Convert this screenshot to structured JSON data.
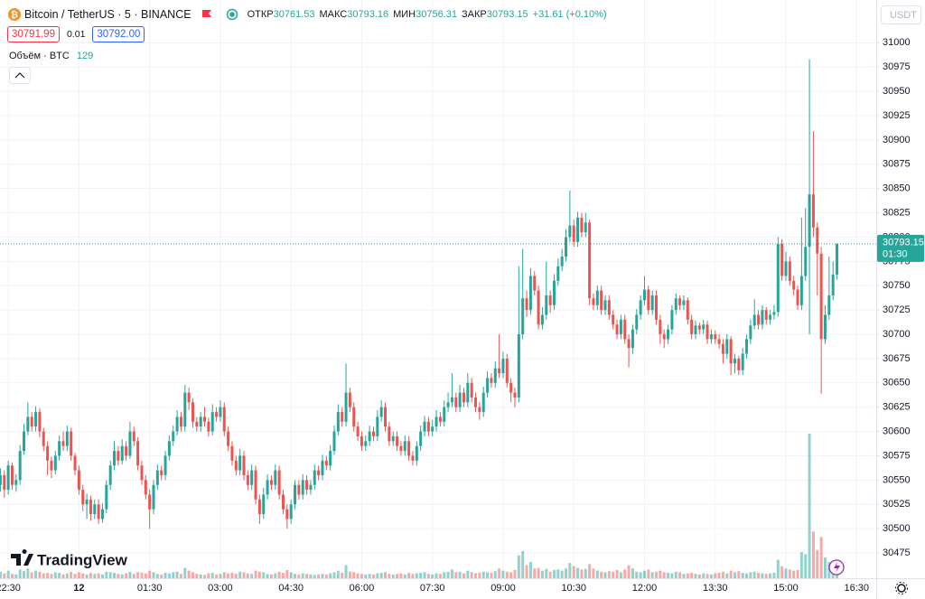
{
  "chart_data": {
    "type": "candlestick",
    "symbol": "Bitcoin / TetherUS · 5 · BINANCE",
    "open_label": "ОТКР",
    "high_label": "МАКС",
    "low_label": "МИН",
    "close_label": "ЗАКР",
    "change": "+31.61 (+0.10%)",
    "bid": "30791.99",
    "spread": "0.01",
    "ask": "30792.00",
    "volume_label": "Объём · BTC",
    "currency": "USDT",
    "countdown": "01:30",
    "logo": "TradingView",
    "up_color": "#26a69a",
    "down_color": "#ef5350",
    "grid": true,
    "ylim": [
      30449,
      31044
    ],
    "yticks": [
      30475,
      30500,
      30525,
      30550,
      30575,
      30600,
      30625,
      30650,
      30675,
      30700,
      30725,
      30750,
      30775,
      30800,
      30825,
      30850,
      30875,
      30900,
      30925,
      30950,
      30975,
      31000
    ],
    "xlim": [
      -0.1,
      223
    ],
    "xticks": [
      {
        "value": 2,
        "label": "22:30"
      },
      {
        "value": 20,
        "label": "12"
      },
      {
        "value": 38,
        "label": "01:30"
      },
      {
        "value": 56,
        "label": "03:00"
      },
      {
        "value": 74,
        "label": "04:30"
      },
      {
        "value": 92,
        "label": "06:00"
      },
      {
        "value": 110,
        "label": "07:30"
      },
      {
        "value": 128,
        "label": "09:00"
      },
      {
        "value": 146,
        "label": "10:30"
      },
      {
        "value": 164,
        "label": "12:00"
      },
      {
        "value": 182,
        "label": "13:30"
      },
      {
        "value": 200,
        "label": "15:00"
      },
      {
        "value": 218,
        "label": "16:30"
      }
    ],
    "open": [
      30545,
      30555,
      30540,
      30565,
      30545,
      30550,
      30580,
      30600,
      30615,
      30605,
      30620,
      30600,
      30585,
      30570,
      30560,
      30575,
      30590,
      30585,
      30600,
      30575,
      30560,
      30540,
      30525,
      30530,
      30515,
      30525,
      30510,
      30520,
      30545,
      30565,
      30580,
      30570,
      30585,
      30575,
      30600,
      30590,
      30565,
      30550,
      30535,
      30520,
      30545,
      30560,
      30555,
      30575,
      30590,
      30600,
      30615,
      30605,
      30640,
      30630,
      30610,
      30605,
      30615,
      30610,
      30600,
      30620,
      30615,
      30625,
      30600,
      30585,
      30570,
      30560,
      30575,
      30555,
      30545,
      30560,
      30530,
      30515,
      30535,
      30550,
      30545,
      30560,
      30535,
      30520,
      30510,
      30525,
      30545,
      30535,
      30550,
      30540,
      30545,
      30560,
      30555,
      30570,
      30565,
      30580,
      30600,
      30620,
      30610,
      30640,
      30625,
      30605,
      30595,
      30585,
      30590,
      30600,
      30595,
      30615,
      30625,
      30605,
      30590,
      30595,
      30585,
      30580,
      30590,
      30575,
      30570,
      30585,
      30600,
      30610,
      30600,
      30605,
      30615,
      30610,
      30625,
      30630,
      30635,
      30625,
      30640,
      30630,
      30650,
      30635,
      30625,
      30620,
      30640,
      30655,
      30650,
      30665,
      30660,
      30675,
      30650,
      30640,
      30635,
      30700,
      30737,
      30725,
      30760,
      30745,
      30710,
      30720,
      30740,
      30730,
      30755,
      30770,
      30780,
      30800,
      30812,
      30795,
      30820,
      30805,
      30815,
      30737,
      30730,
      30745,
      30725,
      30735,
      30720,
      30710,
      30700,
      30715,
      30695,
      30686,
      30705,
      30720,
      30735,
      30746,
      30725,
      30740,
      30715,
      30700,
      30695,
      30705,
      30725,
      30737,
      30730,
      30735,
      30715,
      30700,
      30709,
      30705,
      30710,
      30695,
      30700,
      30695,
      30690,
      30680,
      30695,
      30670,
      30675,
      30663,
      30680,
      30695,
      30709,
      30720,
      30710,
      30725,
      30715,
      30720,
      30723,
      30793,
      30760,
      30775,
      30755,
      30746,
      30730,
      30760,
      30790,
      30844,
      30810,
      30783,
      30695,
      30720,
      30740,
      30761.53
    ],
    "high": [
      30562,
      30560,
      30570,
      30568,
      30556,
      30586,
      30608,
      30630,
      30620,
      30626,
      30624,
      30604,
      30590,
      30574,
      30580,
      30596,
      30600,
      30606,
      30604,
      30578,
      30565,
      30545,
      30536,
      30534,
      30530,
      30530,
      30526,
      30550,
      30570,
      30590,
      30585,
      30592,
      30590,
      30610,
      30605,
      30594,
      30570,
      30555,
      30540,
      30550,
      30566,
      30565,
      30580,
      30596,
      30606,
      30622,
      30620,
      30648,
      30645,
      30634,
      30615,
      30620,
      30625,
      30614,
      30628,
      30625,
      30632,
      30630,
      30605,
      30590,
      30575,
      30582,
      30580,
      30560,
      30566,
      30565,
      30535,
      30542,
      30556,
      30555,
      30566,
      30565,
      30540,
      30525,
      30530,
      30550,
      30550,
      30556,
      30555,
      30550,
      30566,
      30565,
      30576,
      30575,
      30586,
      30606,
      30628,
      30625,
      30670,
      30645,
      30630,
      30610,
      30600,
      30596,
      30606,
      30605,
      30622,
      30632,
      30630,
      30610,
      30600,
      30600,
      30590,
      30596,
      30595,
      30580,
      30590,
      30606,
      30616,
      30615,
      30612,
      30622,
      30620,
      30632,
      30640,
      30660,
      30640,
      30648,
      30645,
      30660,
      30655,
      30640,
      30630,
      30646,
      30662,
      30660,
      30672,
      30700,
      30682,
      30680,
      30655,
      30645,
      30770,
      30788,
      30745,
      30768,
      30765,
      30750,
      30728,
      30775,
      30745,
      30762,
      30778,
      30788,
      30808,
      30848,
      30818,
      30826,
      30825,
      30825,
      30818,
      30742,
      30750,
      30750,
      30740,
      30740,
      30725,
      30715,
      30720,
      30720,
      30700,
      30710,
      30726,
      30740,
      30760,
      30750,
      30745,
      30745,
      30720,
      30705,
      30710,
      30730,
      30742,
      30740,
      30740,
      30738,
      30720,
      30714,
      30712,
      30715,
      30714,
      30705,
      30704,
      30700,
      30695,
      30700,
      30698,
      30680,
      30678,
      30686,
      30700,
      30715,
      30736,
      30725,
      30730,
      30728,
      30725,
      30730,
      30800,
      30798,
      30785,
      30780,
      30760,
      30750,
      30820,
      30830,
      30983,
      30909,
      30815,
      30790,
      30730,
      30780,
      30775,
      30793.16
    ],
    "low": [
      30538,
      30532,
      30535,
      30540,
      30538,
      30545,
      30576,
      30596,
      30600,
      30600,
      30594,
      30580,
      30555,
      30552,
      30556,
      30570,
      30580,
      30580,
      30570,
      30555,
      30535,
      30518,
      30510,
      30508,
      30510,
      30505,
      30506,
      30516,
      30540,
      30560,
      30565,
      30566,
      30570,
      30572,
      30585,
      30560,
      30545,
      30530,
      30500,
      30515,
      30540,
      30550,
      30550,
      30570,
      30585,
      30596,
      30600,
      30600,
      30622,
      30604,
      30600,
      30600,
      30605,
      30595,
      30596,
      30610,
      30610,
      30595,
      30580,
      30565,
      30555,
      30555,
      30550,
      30540,
      30540,
      30525,
      30505,
      30510,
      30530,
      30540,
      30540,
      30530,
      30515,
      30500,
      30505,
      30520,
      30530,
      30530,
      30535,
      30535,
      30540,
      30550,
      30550,
      30560,
      30560,
      30576,
      30596,
      30605,
      30605,
      30620,
      30600,
      30590,
      30580,
      30580,
      30585,
      30590,
      30590,
      30610,
      30600,
      30585,
      30585,
      30580,
      30575,
      30575,
      30570,
      30565,
      30565,
      30580,
      30595,
      30595,
      30595,
      30600,
      30605,
      30605,
      30620,
      30625,
      30620,
      30620,
      30625,
      30625,
      30630,
      30620,
      30612,
      30615,
      30635,
      30645,
      30645,
      30655,
      30655,
      30645,
      30630,
      30625,
      30630,
      30695,
      30718,
      30720,
      30740,
      30705,
      30705,
      30715,
      30722,
      30725,
      30750,
      30765,
      30775,
      30795,
      30790,
      30790,
      30800,
      30800,
      30730,
      30725,
      30725,
      30720,
      30720,
      30715,
      30705,
      30695,
      30695,
      30690,
      30666,
      30680,
      30700,
      30715,
      30730,
      30720,
      30720,
      30710,
      30690,
      30686,
      30690,
      30700,
      30720,
      30725,
      30725,
      30710,
      30695,
      30695,
      30700,
      30700,
      30690,
      30690,
      30690,
      30685,
      30670,
      30675,
      30658,
      30660,
      30658,
      30658,
      30675,
      30690,
      30705,
      30705,
      30705,
      30710,
      30710,
      30715,
      30718,
      30755,
      30755,
      30750,
      30740,
      30725,
      30725,
      30755,
      30700,
      30800,
      30740,
      30639,
      30690,
      30715,
      30735,
      30756.31
    ],
    "close": [
      30555,
      30540,
      30565,
      30545,
      30550,
      30580,
      30600,
      30615,
      30605,
      30620,
      30600,
      30585,
      30570,
      30560,
      30575,
      30590,
      30585,
      30600,
      30575,
      30560,
      30540,
      30525,
      30530,
      30515,
      30525,
      30510,
      30520,
      30545,
      30565,
      30580,
      30570,
      30585,
      30575,
      30600,
      30590,
      30565,
      30550,
      30535,
      30520,
      30545,
      30560,
      30555,
      30575,
      30590,
      30600,
      30615,
      30605,
      30640,
      30630,
      30610,
      30605,
      30615,
      30610,
      30600,
      30620,
      30615,
      30625,
      30600,
      30585,
      30570,
      30560,
      30575,
      30555,
      30545,
      30560,
      30530,
      30515,
      30535,
      30550,
      30545,
      30560,
      30535,
      30520,
      30510,
      30525,
      30545,
      30535,
      30550,
      30540,
      30545,
      30560,
      30555,
      30570,
      30565,
      30580,
      30600,
      30620,
      30610,
      30640,
      30625,
      30605,
      30595,
      30585,
      30590,
      30600,
      30595,
      30615,
      30625,
      30605,
      30590,
      30595,
      30585,
      30580,
      30590,
      30575,
      30570,
      30585,
      30600,
      30610,
      30600,
      30605,
      30615,
      30610,
      30625,
      30630,
      30635,
      30625,
      30640,
      30630,
      30650,
      30635,
      30625,
      30620,
      30640,
      30655,
      30650,
      30665,
      30660,
      30675,
      30650,
      30640,
      30635,
      30700,
      30737,
      30725,
      30760,
      30745,
      30710,
      30720,
      30740,
      30730,
      30755,
      30770,
      30780,
      30800,
      30812,
      30795,
      30820,
      30805,
      30815,
      30737,
      30730,
      30745,
      30725,
      30735,
      30720,
      30710,
      30700,
      30715,
      30695,
      30686,
      30705,
      30720,
      30735,
      30746,
      30725,
      30740,
      30715,
      30700,
      30695,
      30705,
      30725,
      30737,
      30730,
      30735,
      30715,
      30700,
      30709,
      30705,
      30710,
      30695,
      30700,
      30695,
      30690,
      30680,
      30695,
      30670,
      30675,
      30663,
      30680,
      30695,
      30709,
      30720,
      30710,
      30725,
      30715,
      30720,
      30723,
      30793,
      30760,
      30775,
      30755,
      30746,
      30730,
      30760,
      30790,
      30844,
      30810,
      30783,
      30695,
      30720,
      30740,
      30761.53,
      30793.15
    ],
    "volume": [
      60,
      45,
      70,
      40,
      35,
      80,
      65,
      90,
      55,
      70,
      60,
      45,
      50,
      40,
      55,
      50,
      35,
      45,
      60,
      40,
      55,
      45,
      35,
      50,
      40,
      45,
      35,
      60,
      55,
      50,
      40,
      35,
      45,
      60,
      40,
      55,
      50,
      45,
      70,
      55,
      40,
      35,
      50,
      45,
      55,
      60,
      40,
      95,
      70,
      55,
      40,
      35,
      30,
      45,
      50,
      35,
      40,
      55,
      45,
      50,
      40,
      60,
      55,
      45,
      40,
      70,
      60,
      55,
      40,
      35,
      45,
      60,
      50,
      75,
      55,
      40,
      35,
      45,
      40,
      35,
      30,
      35,
      40,
      35,
      45,
      55,
      70,
      50,
      120,
      60,
      55,
      45,
      40,
      35,
      40,
      35,
      45,
      50,
      55,
      40,
      35,
      40,
      45,
      35,
      50,
      40,
      45,
      50,
      55,
      40,
      35,
      45,
      40,
      55,
      60,
      80,
      55,
      60,
      45,
      70,
      55,
      45,
      50,
      60,
      55,
      50,
      65,
      90,
      70,
      60,
      55,
      75,
      210,
      250,
      120,
      150,
      90,
      95,
      70,
      85,
      60,
      75,
      80,
      70,
      90,
      140,
      110,
      95,
      80,
      85,
      130,
      90,
      70,
      60,
      55,
      65,
      60,
      75,
      55,
      80,
      120,
      90,
      60,
      55,
      70,
      80,
      55,
      60,
      70,
      55,
      50,
      45,
      60,
      55,
      40,
      45,
      50,
      40,
      35,
      45,
      40,
      35,
      45,
      50,
      60,
      45,
      70,
      55,
      65,
      50,
      45,
      55,
      60,
      50,
      45,
      40,
      45,
      50,
      170,
      110,
      90,
      80,
      70,
      75,
      240,
      220,
      1330,
      430,
      260,
      380,
      190,
      150,
      120,
      129
    ]
  }
}
